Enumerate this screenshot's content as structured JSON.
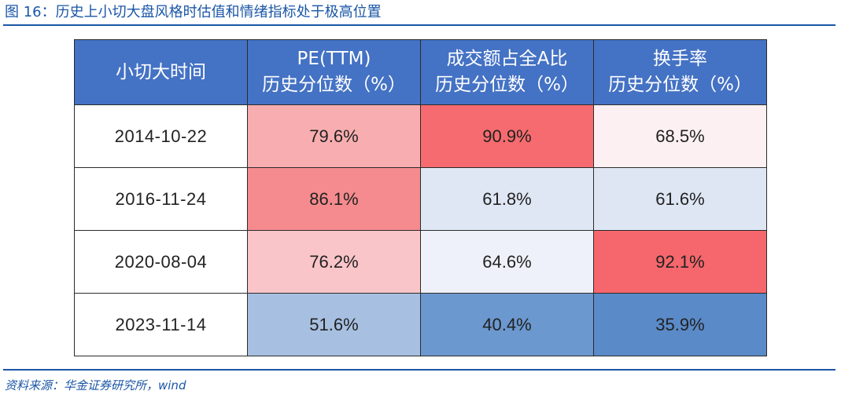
{
  "caption": "图 16：历史上小切大盘风格时估值和情绪指标处于极高位置",
  "table": {
    "headers": [
      {
        "line1": "小切大时间",
        "line2": ""
      },
      {
        "line1": "PE(TTM)",
        "line2": "历史分位数（%）"
      },
      {
        "line1": "成交额占全A比",
        "line2": "历史分位数（%）"
      },
      {
        "line1": "换手率",
        "line2": "历史分位数（%）"
      }
    ],
    "rows": [
      {
        "date": "2014-10-22",
        "cells": [
          {
            "value": "79.6%",
            "color": "#f8aeb0"
          },
          {
            "value": "90.9%",
            "color": "#f66b6f"
          },
          {
            "value": "68.5%",
            "color": "#fcf0f2"
          }
        ]
      },
      {
        "date": "2016-11-24",
        "cells": [
          {
            "value": "86.1%",
            "color": "#f58b8e"
          },
          {
            "value": "61.8%",
            "color": "#dfe7f4"
          },
          {
            "value": "61.6%",
            "color": "#dee6f4"
          }
        ]
      },
      {
        "date": "2020-08-04",
        "cells": [
          {
            "value": "76.2%",
            "color": "#f9c5c8"
          },
          {
            "value": "64.6%",
            "color": "#eef1f9"
          },
          {
            "value": "92.1%",
            "color": "#f5676c"
          }
        ]
      },
      {
        "date": "2023-11-14",
        "cells": [
          {
            "value": "51.6%",
            "color": "#a7c0e1"
          },
          {
            "value": "40.4%",
            "color": "#6b98cf"
          },
          {
            "value": "35.9%",
            "color": "#5a8ac8"
          }
        ]
      }
    ]
  },
  "source": "资料来源：华金证券研究所，wind",
  "colors": {
    "accent": "#1a56a6",
    "header_bg": "#4472c4"
  }
}
